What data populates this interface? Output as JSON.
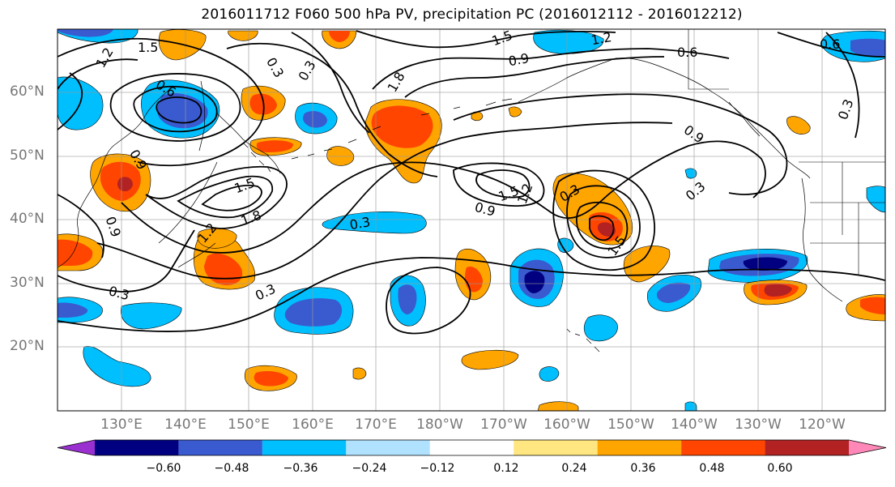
{
  "title": "2016011712 F060 500 hPa PV, precipitation PC (2016012112 - 2016012212)",
  "lat_labels": [
    "60°N",
    "50°N",
    "40°N",
    "30°N",
    "20°N"
  ],
  "lon_labels": [
    "130°E",
    "140°E",
    "150°E",
    "160°E",
    "170°E",
    "180°W",
    "170°W",
    "160°W",
    "150°W",
    "140°W",
    "130°W",
    "120°W"
  ],
  "contour_labels": [
    "1.5",
    "1.2",
    "0.6",
    "0.3",
    "1.8",
    "0.9",
    "0.3",
    "1.5",
    "1.8",
    "0.3",
    "0.3",
    "0.9",
    "1.5",
    "1.2",
    "0.3",
    "1.5",
    "0.9",
    "0.3",
    "0.6",
    "1.2",
    "1.5",
    "0.9",
    "0.3",
    "1.2",
    "0.9",
    "0.6",
    "0.3"
  ],
  "colorbar": {
    "ticks": [
      "−0.60",
      "−0.48",
      "−0.36",
      "−0.24",
      "−0.12",
      "0.12",
      "0.24",
      "0.36",
      "0.48",
      "0.60"
    ],
    "colors": [
      "#9b30d0",
      "#000080",
      "#3a5ad0",
      "#00bfff",
      "#b0e2ff",
      "#ffffff",
      "#ffe680",
      "#ffa500",
      "#ff4500",
      "#b22222",
      "#ff88b8"
    ]
  },
  "fill_colors": {
    "neg_weak": "#00bfff",
    "neg_mid": "#3a5ad0",
    "neg_strong": "#000080",
    "neg_extreme": "#9b30d0",
    "pos_weak": "#ffe680",
    "pos_mid": "#ffa500",
    "pos_strong": "#ff4500",
    "pos_extreme": "#b22222"
  }
}
